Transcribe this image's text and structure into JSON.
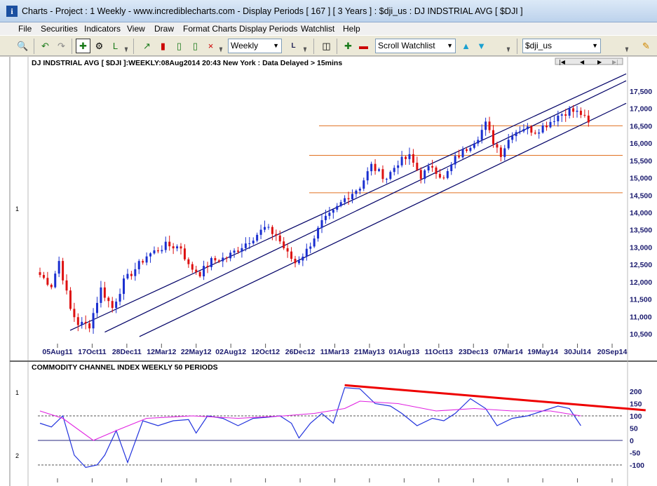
{
  "window": {
    "title": "Charts - Project : 1 Weekly - www.incrediblecharts.com - Display Periods  [ 167 ]  [ 3 Years ] : $dji_us : DJ INDSTRIAL AVG  [ $DJI ]"
  },
  "menu": [
    "File",
    "Securities",
    "Indicators",
    "View",
    "Draw",
    "Format Charts",
    "Display Periods",
    "Watchlist",
    "Help"
  ],
  "toolbar": {
    "period_value": "Weekly",
    "watchlist_value": "Scroll Watchlist",
    "symbol_value": "$dji_us"
  },
  "icons": [
    "zoom-icon",
    "undo-icon",
    "redo-icon",
    "crosshair-icon",
    "magnify-icon",
    "line-tool-icon",
    "line-chart-icon",
    "bar-chart-icon",
    "candlestick-icon",
    "point-figure-icon",
    "log-scale-icon",
    "page-icon",
    "add-security-icon",
    "remove-security-icon",
    "scroll-up-icon",
    "scroll-down-icon",
    "pencil-icon"
  ],
  "colors": {
    "up_bar": "#1a2fd0",
    "down_bar": "#dd1111",
    "channel": "#000066",
    "support": "#e07020",
    "cci": "#2233dd",
    "cci_ma": "#e020e0",
    "trendline": "#ee0000"
  },
  "chart_data": [
    {
      "type": "candlestick",
      "title": "DJ INDSTRIAL AVG [ $DJI ]:WEEKLY:08Aug2014 20:43 New York : Data Delayed > 15mins",
      "pane_label": "1",
      "x_tick_labels": [
        "05Aug11",
        "17Oct11",
        "28Dec11",
        "12Mar12",
        "22May12",
        "02Aug12",
        "12Oct12",
        "26Dec12",
        "11Mar13",
        "21May13",
        "01Aug13",
        "11Oct13",
        "23Dec13",
        "07Mar14",
        "19May14",
        "30Jul14",
        "20Sep14"
      ],
      "y_tick_labels": [
        "10,500",
        "11,000",
        "11,500",
        "12,000",
        "12,500",
        "13,000",
        "13,500",
        "14,000",
        "14,500",
        "15,000",
        "15,500",
        "16,000",
        "16,500",
        "17,000",
        "17,500"
      ],
      "ylim": [
        10200,
        18000
      ],
      "horizontal_lines": [
        16500,
        15650,
        14570
      ],
      "close_anchors": [
        [
          0,
          12200
        ],
        [
          3,
          11900
        ],
        [
          5,
          12600
        ],
        [
          8,
          11200
        ],
        [
          10,
          10800
        ],
        [
          13,
          10750
        ],
        [
          16,
          11800
        ],
        [
          19,
          11250
        ],
        [
          22,
          12000
        ],
        [
          28,
          12750
        ],
        [
          33,
          13050
        ],
        [
          37,
          13000
        ],
        [
          39,
          12450
        ],
        [
          42,
          12250
        ],
        [
          45,
          12600
        ],
        [
          49,
          12700
        ],
        [
          55,
          13200
        ],
        [
          59,
          13550
        ],
        [
          62,
          13350
        ],
        [
          65,
          12800
        ],
        [
          67,
          12550
        ],
        [
          70,
          12900
        ],
        [
          74,
          13700
        ],
        [
          77,
          14000
        ],
        [
          80,
          14400
        ],
        [
          84,
          14750
        ],
        [
          87,
          15350
        ],
        [
          89,
          15150
        ],
        [
          91,
          15000
        ],
        [
          94,
          15450
        ],
        [
          97,
          15600
        ],
        [
          100,
          15050
        ],
        [
          103,
          15350
        ],
        [
          106,
          14950
        ],
        [
          109,
          15550
        ],
        [
          112,
          15850
        ],
        [
          115,
          16200
        ],
        [
          117,
          16550
        ],
        [
          119,
          16050
        ],
        [
          121,
          15700
        ],
        [
          124,
          16300
        ],
        [
          127,
          16450
        ],
        [
          130,
          16350
        ],
        [
          133,
          16550
        ],
        [
          136,
          16800
        ],
        [
          139,
          16950
        ],
        [
          142,
          16850
        ],
        [
          144,
          16550
        ]
      ],
      "bar_count": 145,
      "channels": [
        {
          "from": [
            "05Aug11",
            10600
          ],
          "to": [
            "20Sep14",
            18000
          ]
        },
        {
          "from": [
            "17Oct11",
            10550
          ],
          "to": [
            "20Sep14",
            17800
          ]
        },
        {
          "from": [
            "28Dec11",
            10420
          ],
          "to": [
            "20Sep14",
            17150
          ]
        }
      ]
    },
    {
      "type": "line",
      "title": "COMMODITY CHANNEL INDEX WEEKLY 50 PERIODS",
      "pane_labels": [
        "1",
        "2"
      ],
      "y_tick_labels": [
        "200",
        "150",
        "100",
        "50",
        "0",
        "-50",
        "-100"
      ],
      "ylim": [
        -140,
        240
      ],
      "reference_lines": [
        100,
        0,
        -100
      ],
      "series": [
        {
          "points": [
            [
              0,
              70
            ],
            [
              3,
              55
            ],
            [
              6,
              100
            ],
            [
              9,
              -60
            ],
            [
              12,
              -110
            ],
            [
              15,
              -100
            ],
            [
              17,
              -60
            ],
            [
              20,
              40
            ],
            [
              23,
              -90
            ],
            [
              27,
              80
            ],
            [
              31,
              60
            ],
            [
              35,
              80
            ],
            [
              39,
              85
            ],
            [
              41,
              30
            ],
            [
              44,
              100
            ],
            [
              48,
              90
            ],
            [
              52,
              60
            ],
            [
              56,
              90
            ],
            [
              60,
              95
            ],
            [
              63,
              100
            ],
            [
              66,
              70
            ],
            [
              68,
              10
            ],
            [
              71,
              70
            ],
            [
              74,
              110
            ],
            [
              77,
              70
            ],
            [
              80,
              215
            ],
            [
              84,
              210
            ],
            [
              88,
              150
            ],
            [
              92,
              140
            ],
            [
              95,
              110
            ],
            [
              99,
              60
            ],
            [
              103,
              90
            ],
            [
              106,
              80
            ],
            [
              109,
              110
            ],
            [
              113,
              170
            ],
            [
              117,
              130
            ],
            [
              120,
              60
            ],
            [
              124,
              90
            ],
            [
              128,
              100
            ],
            [
              132,
              120
            ],
            [
              136,
              140
            ],
            [
              139,
              130
            ],
            [
              142,
              60
            ]
          ]
        },
        {
          "points": [
            [
              0,
              120
            ],
            [
              6,
              90
            ],
            [
              14,
              0
            ],
            [
              20,
              40
            ],
            [
              28,
              90
            ],
            [
              40,
              100
            ],
            [
              52,
              90
            ],
            [
              64,
              100
            ],
            [
              72,
              110
            ],
            [
              80,
              130
            ],
            [
              84,
              160
            ],
            [
              94,
              150
            ],
            [
              104,
              120
            ],
            [
              114,
              130
            ],
            [
              124,
              120
            ],
            [
              134,
              120
            ],
            [
              142,
              100
            ]
          ]
        }
      ],
      "trendline": {
        "from": [
          80,
          225
        ],
        "to": [
          159,
          123
        ]
      }
    }
  ]
}
